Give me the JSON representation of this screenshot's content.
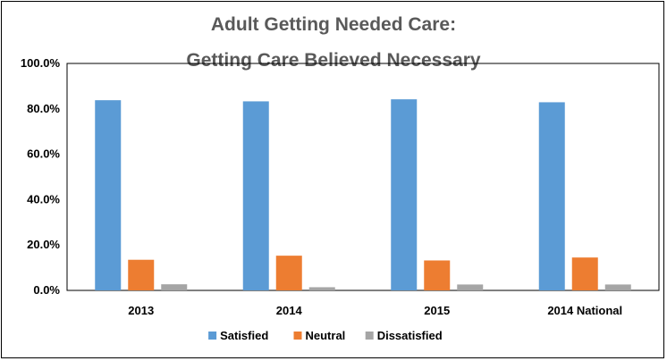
{
  "chart_data": {
    "type": "bar",
    "title_lines": [
      "Adult Getting Needed Care:",
      "Getting Care Believed Necessary"
    ],
    "categories": [
      "2013",
      "2014",
      "2015",
      "2014 National"
    ],
    "series": [
      {
        "name": "Satisfied",
        "color": "#5B9BD5",
        "values": [
          83.8,
          83.3,
          84.2,
          82.9
        ]
      },
      {
        "name": "Neutral",
        "color": "#ED7D31",
        "values": [
          13.5,
          15.3,
          13.2,
          14.5
        ]
      },
      {
        "name": "Dissatisfied",
        "color": "#A5A5A5",
        "values": [
          2.7,
          1.4,
          2.6,
          2.6
        ]
      }
    ],
    "y_ticks": [
      "0.0%",
      "20.0%",
      "40.0%",
      "60.0%",
      "80.0%",
      "100.0%"
    ],
    "ylim": [
      0,
      100
    ],
    "grid": false,
    "legend_position": "bottom"
  }
}
